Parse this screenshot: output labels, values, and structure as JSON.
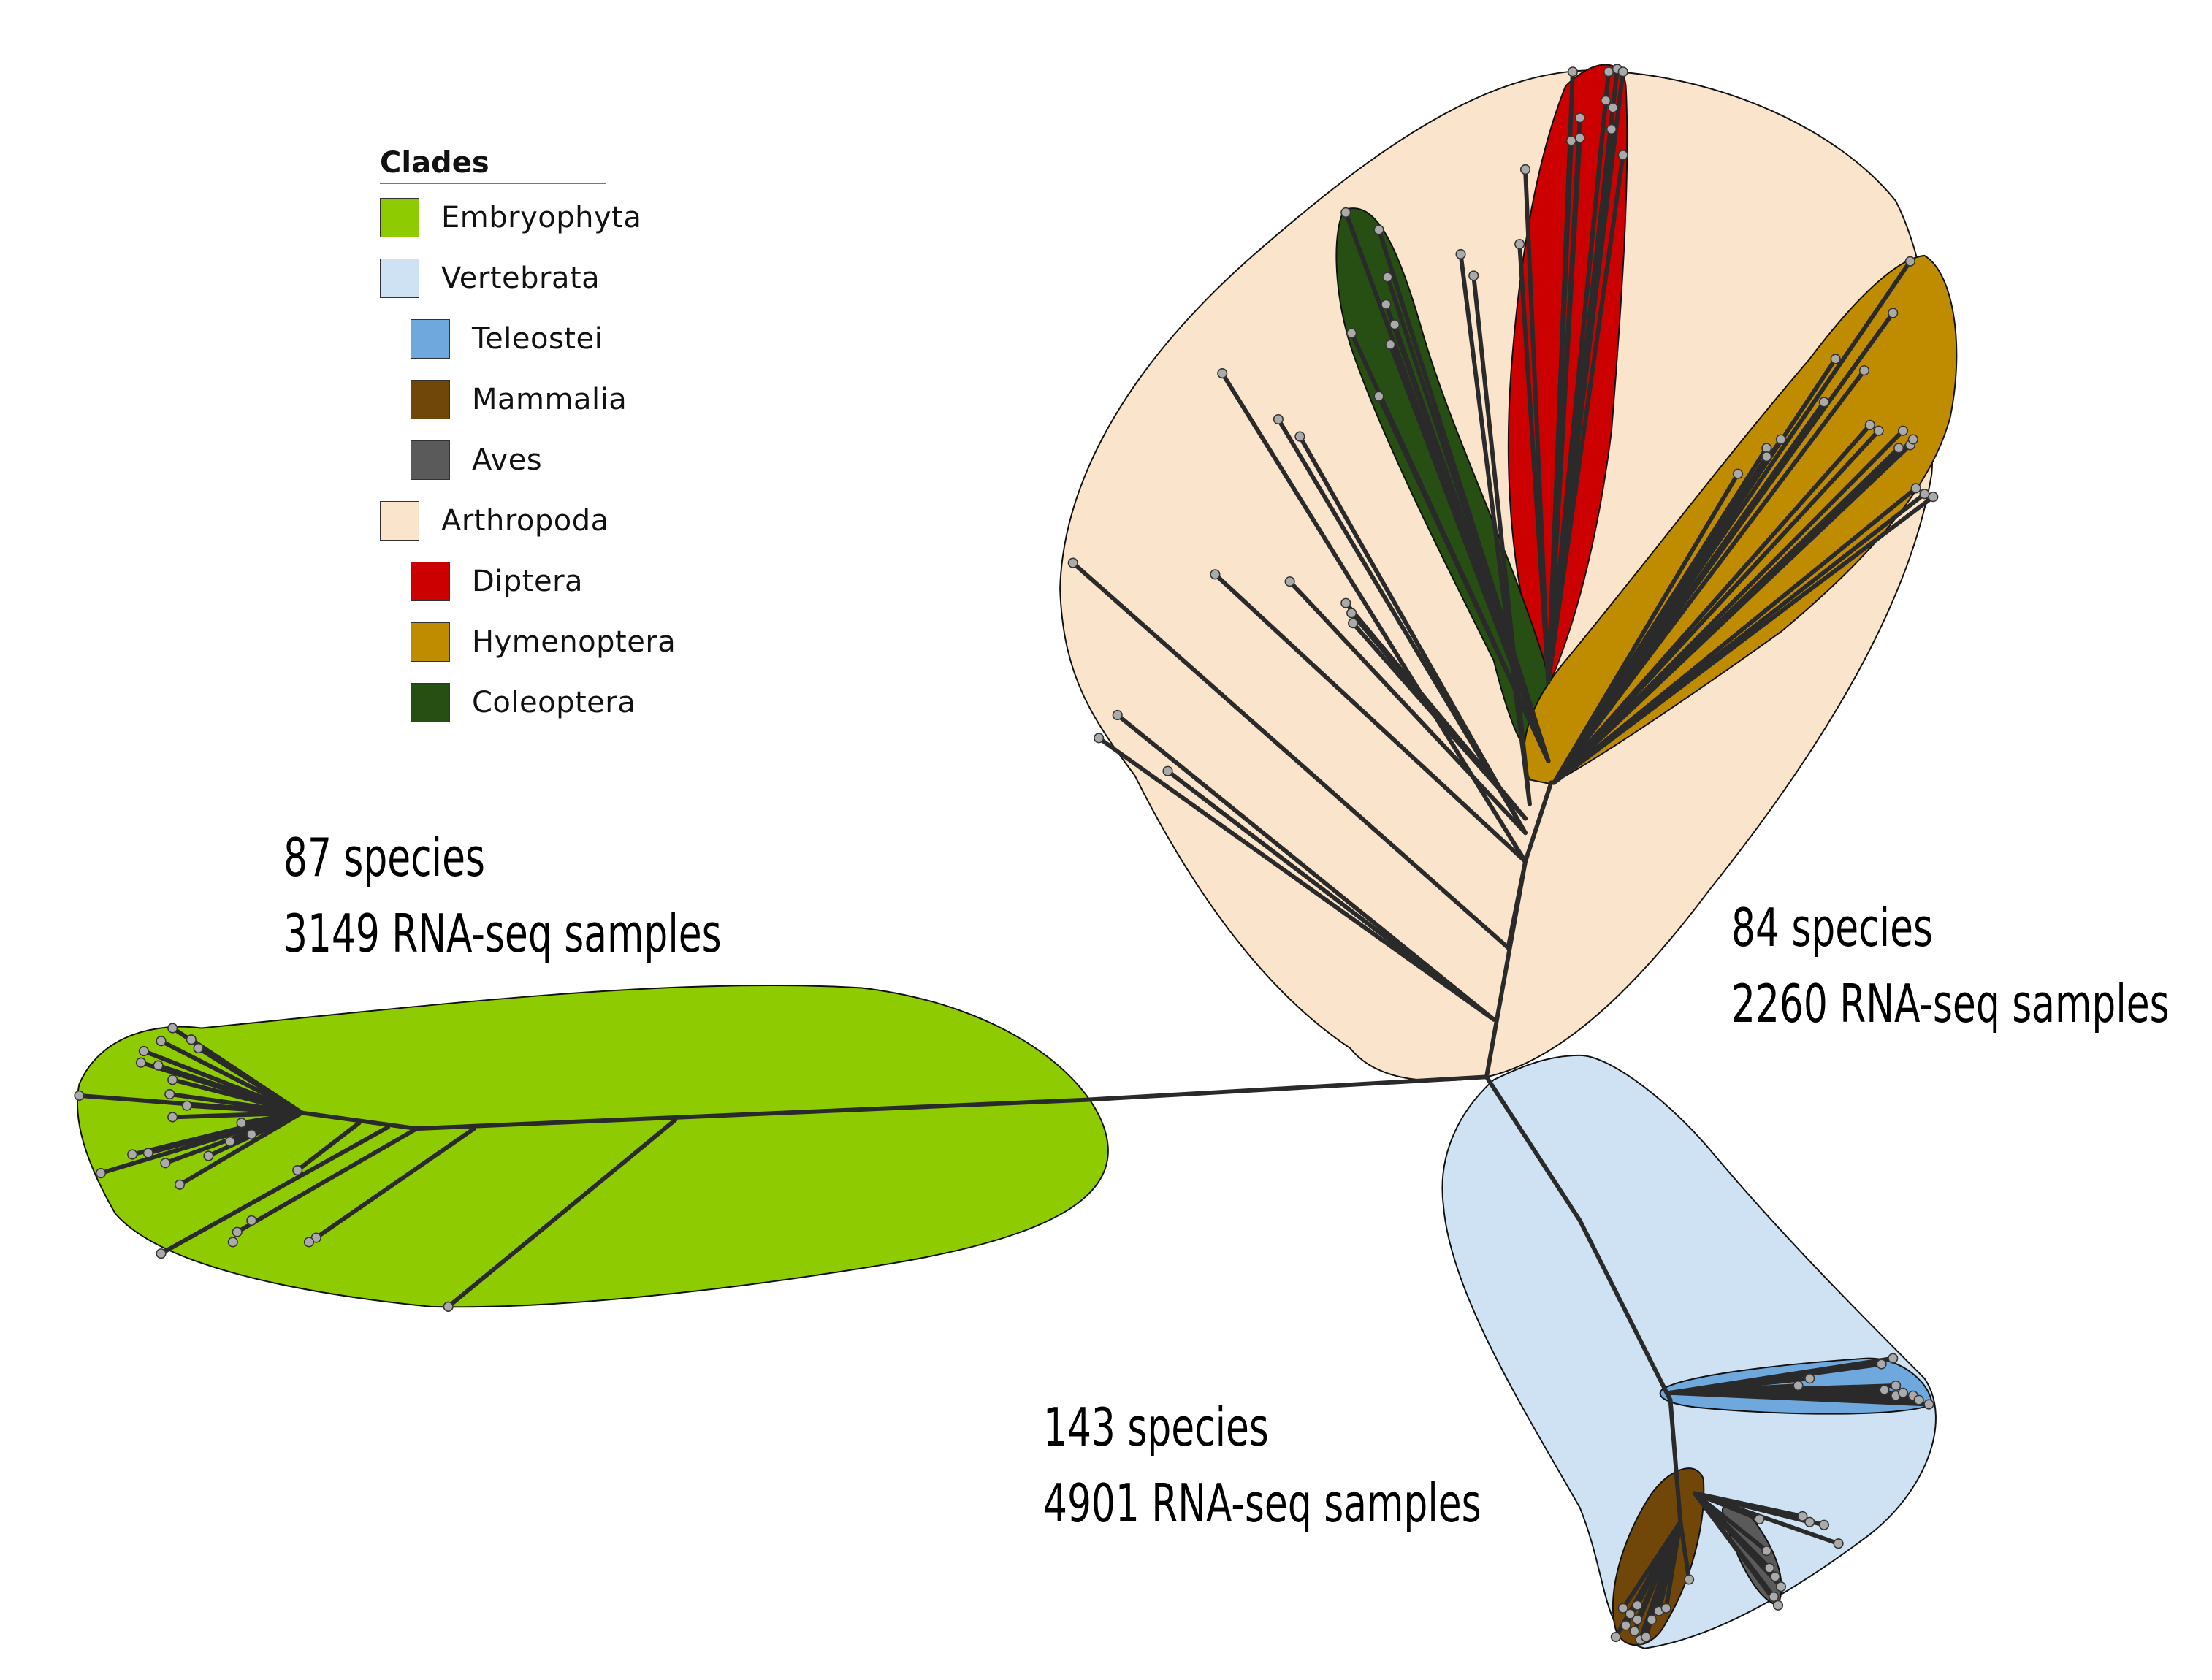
{
  "legend": {
    "title": "Clades",
    "items": [
      {
        "label": "Embryophyta",
        "color": "#8ecb00",
        "sub": false
      },
      {
        "label": "Vertebrata",
        "color": "#cfe2f3",
        "sub": false
      },
      {
        "label": "Teleostei",
        "color": "#6fa8dc",
        "sub": true
      },
      {
        "label": "Mammalia",
        "color": "#714709",
        "sub": true
      },
      {
        "label": "Aves",
        "color": "#5a5a5a",
        "sub": true
      },
      {
        "label": "Arthropoda",
        "color": "#fbe4cc",
        "sub": false
      },
      {
        "label": "Diptera",
        "color": "#cc0000",
        "sub": true
      },
      {
        "label": "Hymenoptera",
        "color": "#bf8c00",
        "sub": true
      },
      {
        "label": "Coleoptera",
        "color": "#274e13",
        "sub": true
      }
    ]
  },
  "annotations": {
    "plants": {
      "species": "87 species",
      "samples": "3149 RNA-seq samples"
    },
    "arthropods": {
      "species": "84 species",
      "samples": "2260 RNA-seq samples"
    },
    "vertebrates": {
      "species": "143 species",
      "samples": "4901 RNA-seq samples"
    }
  },
  "colors": {
    "branch": "#2a2a2a",
    "tip": "#aaaaaa",
    "outline": "#111111"
  }
}
